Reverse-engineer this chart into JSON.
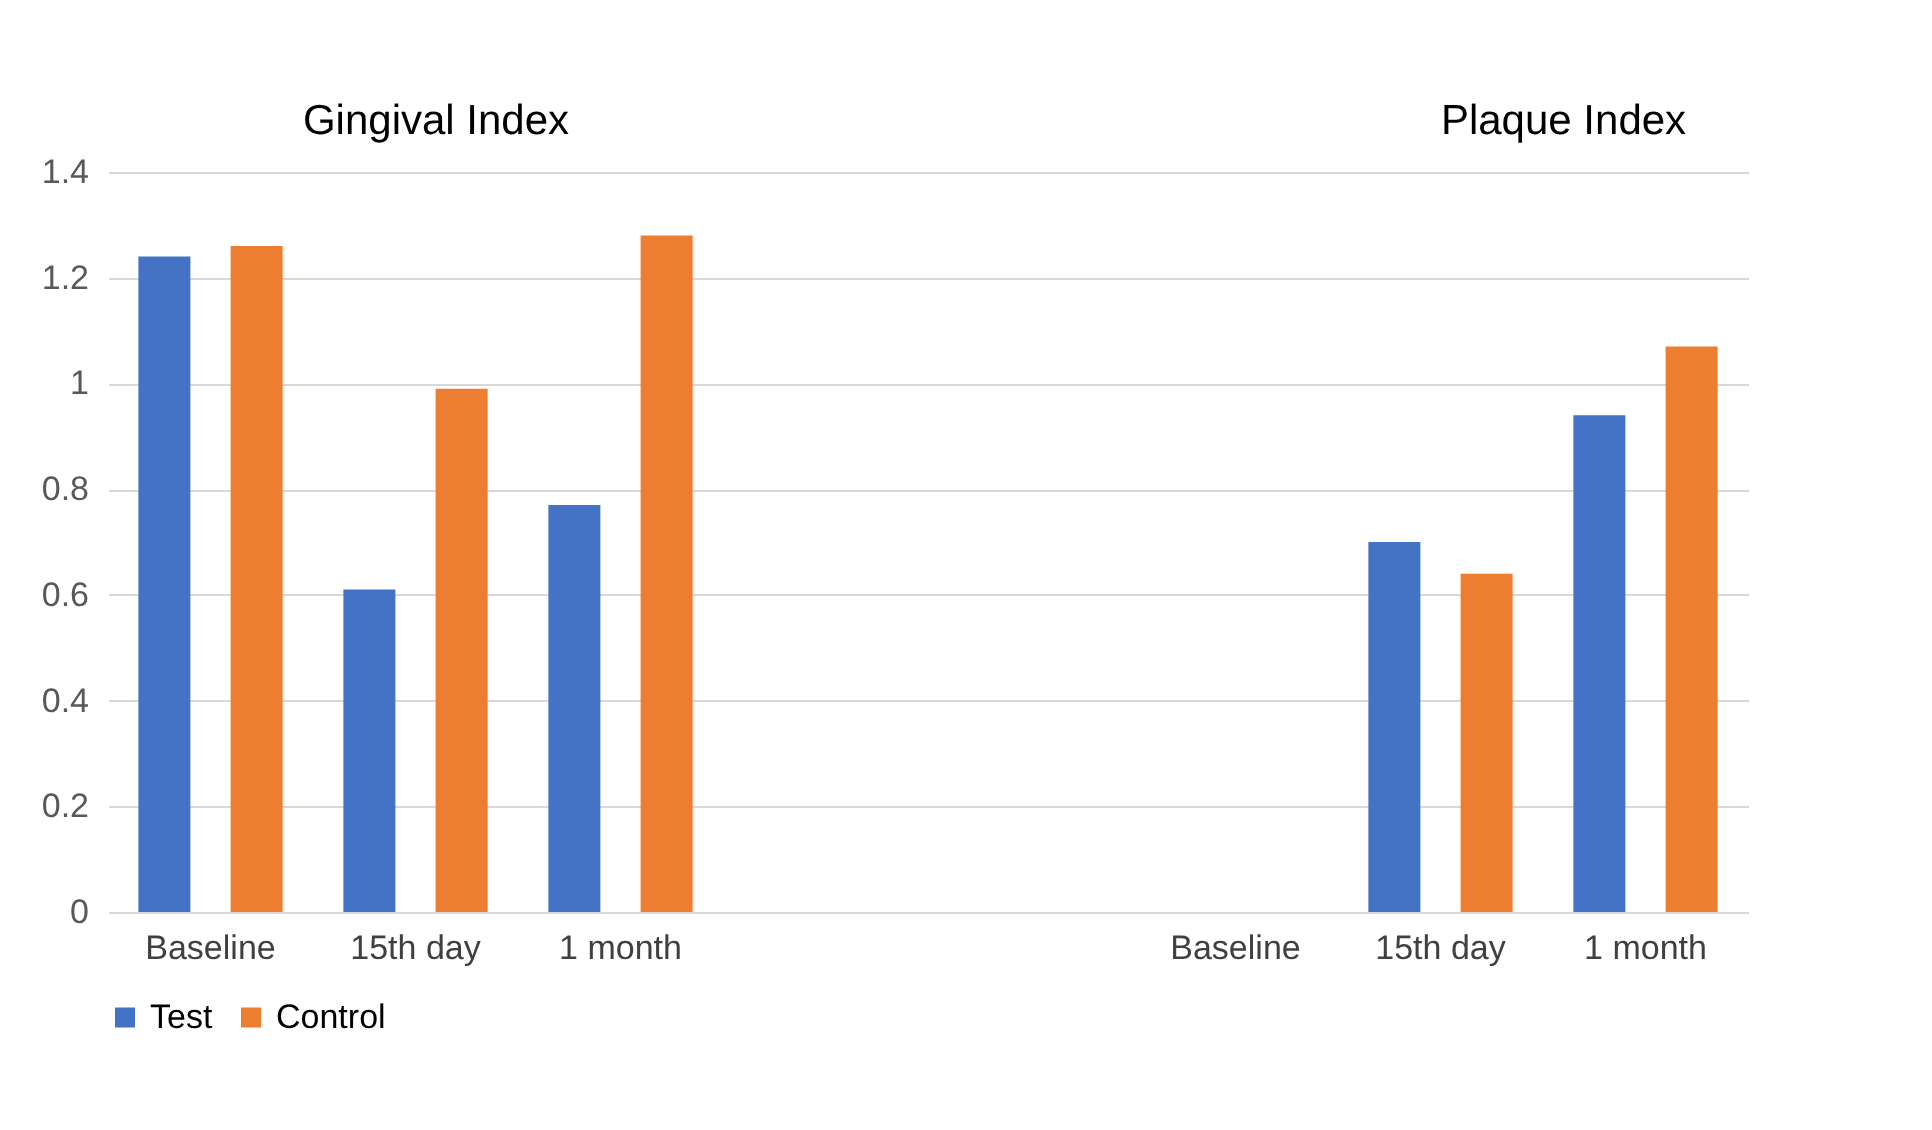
{
  "chart_data": {
    "type": "bar",
    "categories": [
      "Baseline",
      "15th day",
      "1 month",
      null,
      null,
      "Baseline",
      "15th day",
      "1 month"
    ],
    "series": [
      {
        "name": "Test",
        "color": "#4472c4",
        "values": [
          1.24,
          0.61,
          0.77,
          null,
          null,
          null,
          0.7,
          0.94
        ]
      },
      {
        "name": "Control",
        "color": "#ed7d31",
        "values": [
          1.26,
          0.99,
          1.28,
          null,
          null,
          null,
          0.64,
          1.07
        ]
      }
    ],
    "annotations": [
      "Gingival Index",
      "Plaque Index"
    ],
    "ylim": [
      0,
      1.4
    ],
    "yticks": [
      0,
      0.2,
      0.4,
      0.6,
      0.8,
      1,
      1.2,
      1.4
    ],
    "grid": "y",
    "legend": "bottom"
  }
}
